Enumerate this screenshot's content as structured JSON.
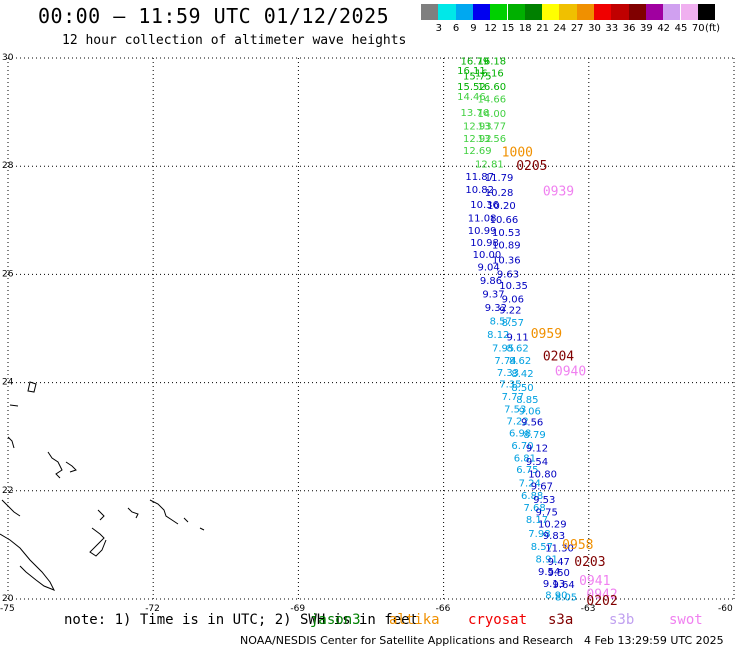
{
  "header": {
    "title": "00:00 – 11:59 UTC 01/12/2025",
    "subtitle": "12 hour collection of altimeter wave heights"
  },
  "colorbar": {
    "unit": "(ft)",
    "colors": [
      "#7f7f7f",
      "#00e8e8",
      "#00a8f0",
      "#0000f0",
      "#00d000",
      "#00b000",
      "#008000",
      "#ffff00",
      "#f0c000",
      "#f09000",
      "#f00000",
      "#c00000",
      "#800000",
      "#a000a0",
      "#d0a0f0",
      "#f0b0f0",
      "#000000"
    ],
    "labels": [
      "3",
      "6",
      "9",
      "12",
      "15",
      "18",
      "21",
      "24",
      "27",
      "30",
      "33",
      "36",
      "39",
      "42",
      "45",
      "70"
    ]
  },
  "map": {
    "lon_range": [
      -75,
      -60
    ],
    "lat_range": [
      20,
      30
    ],
    "x_ticks": [
      "-75",
      "-72",
      "-69",
      "-66",
      "-63",
      "-60"
    ],
    "y_ticks": [
      "30",
      "28",
      "26",
      "24",
      "22",
      "20"
    ]
  },
  "track_labels": [
    {
      "lon": -65.65,
      "lat": 29.95,
      "text": "16.79",
      "color": "#00b000"
    },
    {
      "lon": -65.3,
      "lat": 29.95,
      "text": "16.18",
      "color": "#00b000"
    },
    {
      "lon": -65.72,
      "lat": 29.78,
      "text": "16.11",
      "color": "#00b000"
    },
    {
      "lon": -65.35,
      "lat": 29.73,
      "text": "16.16",
      "color": "#00b000"
    },
    {
      "lon": -65.6,
      "lat": 29.68,
      "text": "15.75",
      "color": "#00b000"
    },
    {
      "lon": -65.72,
      "lat": 29.48,
      "text": "15.52",
      "color": "#00b000"
    },
    {
      "lon": -65.3,
      "lat": 29.48,
      "text": "16.60",
      "color": "#00b000"
    },
    {
      "lon": -65.72,
      "lat": 29.3,
      "text": "14.46",
      "color": "#40d040"
    },
    {
      "lon": -65.3,
      "lat": 29.25,
      "text": "14.66",
      "color": "#40d040"
    },
    {
      "lon": -65.65,
      "lat": 29.0,
      "text": "13.76",
      "color": "#40d040"
    },
    {
      "lon": -65.3,
      "lat": 28.98,
      "text": "14.00",
      "color": "#40d040"
    },
    {
      "lon": -65.6,
      "lat": 28.75,
      "text": "12.93",
      "color": "#40d040"
    },
    {
      "lon": -65.3,
      "lat": 28.75,
      "text": "13.77",
      "color": "#40d040"
    },
    {
      "lon": -65.6,
      "lat": 28.52,
      "text": "12.92",
      "color": "#40d040"
    },
    {
      "lon": -65.3,
      "lat": 28.52,
      "text": "13.56",
      "color": "#40d040"
    },
    {
      "lon": -65.6,
      "lat": 28.3,
      "text": "12.69",
      "color": "#40d040"
    },
    {
      "lon": -65.35,
      "lat": 28.05,
      "text": "12.81",
      "color": "#40d040"
    },
    {
      "lon": -65.55,
      "lat": 27.82,
      "text": "11.87",
      "color": "#0000c0"
    },
    {
      "lon": -65.15,
      "lat": 27.8,
      "text": "11.79",
      "color": "#0000c0"
    },
    {
      "lon": -65.55,
      "lat": 27.58,
      "text": "10.82",
      "color": "#0000c0"
    },
    {
      "lon": -65.15,
      "lat": 27.52,
      "text": "10.28",
      "color": "#0000c0"
    },
    {
      "lon": -65.45,
      "lat": 27.3,
      "text": "10.36",
      "color": "#0000c0"
    },
    {
      "lon": -65.1,
      "lat": 27.28,
      "text": "10.20",
      "color": "#0000c0"
    },
    {
      "lon": -65.5,
      "lat": 27.05,
      "text": "11.08",
      "color": "#0000c0"
    },
    {
      "lon": -65.05,
      "lat": 27.02,
      "text": "10.66",
      "color": "#0000c0"
    },
    {
      "lon": -65.5,
      "lat": 26.82,
      "text": "10.99",
      "color": "#0000c0"
    },
    {
      "lon": -65.0,
      "lat": 26.78,
      "text": "10.53",
      "color": "#0000c0"
    },
    {
      "lon": -65.45,
      "lat": 26.6,
      "text": "10.98",
      "color": "#0000c0"
    },
    {
      "lon": -65.0,
      "lat": 26.55,
      "text": "10.89",
      "color": "#0000c0"
    },
    {
      "lon": -65.4,
      "lat": 26.38,
      "text": "10.00",
      "color": "#0000c0"
    },
    {
      "lon": -65.0,
      "lat": 26.28,
      "text": "10.36",
      "color": "#0000c0"
    },
    {
      "lon": -65.3,
      "lat": 26.15,
      "text": "9.04",
      "color": "#0000c0"
    },
    {
      "lon": -64.9,
      "lat": 26.02,
      "text": "9.63",
      "color": "#0000c0"
    },
    {
      "lon": -65.25,
      "lat": 25.9,
      "text": "9.86",
      "color": "#0000c0"
    },
    {
      "lon": -64.85,
      "lat": 25.8,
      "text": "10.35",
      "color": "#0000c0"
    },
    {
      "lon": -65.2,
      "lat": 25.65,
      "text": "9.37",
      "color": "#0000c0"
    },
    {
      "lon": -64.8,
      "lat": 25.55,
      "text": "9.06",
      "color": "#0000c0"
    },
    {
      "lon": -65.15,
      "lat": 25.4,
      "text": "9.32",
      "color": "#0000c0"
    },
    {
      "lon": -64.85,
      "lat": 25.35,
      "text": "9.22",
      "color": "#0000c0"
    },
    {
      "lon": -65.05,
      "lat": 25.15,
      "text": "8.57",
      "color": "#00a0e0"
    },
    {
      "lon": -64.8,
      "lat": 25.12,
      "text": "8.57",
      "color": "#00a0e0"
    },
    {
      "lon": -65.1,
      "lat": 24.9,
      "text": "8.12",
      "color": "#00a0e0"
    },
    {
      "lon": -64.7,
      "lat": 24.85,
      "text": "9.11",
      "color": "#0000c0"
    },
    {
      "lon": -65.0,
      "lat": 24.65,
      "text": "7.95",
      "color": "#00a0e0"
    },
    {
      "lon": -64.7,
      "lat": 24.65,
      "text": "8.62",
      "color": "#00a0e0"
    },
    {
      "lon": -64.95,
      "lat": 24.42,
      "text": "7.74",
      "color": "#00a0e0"
    },
    {
      "lon": -64.65,
      "lat": 24.42,
      "text": "8.62",
      "color": "#00a0e0"
    },
    {
      "lon": -64.9,
      "lat": 24.2,
      "text": "7.33",
      "color": "#00a0e0"
    },
    {
      "lon": -64.6,
      "lat": 24.18,
      "text": "8.42",
      "color": "#00a0e0"
    },
    {
      "lon": -64.85,
      "lat": 23.98,
      "text": "7.35",
      "color": "#00a0e0"
    },
    {
      "lon": -64.6,
      "lat": 23.92,
      "text": "8.50",
      "color": "#00a0e0"
    },
    {
      "lon": -64.8,
      "lat": 23.75,
      "text": "7.77",
      "color": "#00a0e0"
    },
    {
      "lon": -64.5,
      "lat": 23.7,
      "text": "8.85",
      "color": "#00a0e0"
    },
    {
      "lon": -64.75,
      "lat": 23.52,
      "text": "7.53",
      "color": "#00a0e0"
    },
    {
      "lon": -64.45,
      "lat": 23.48,
      "text": "9.06",
      "color": "#00a0e0"
    },
    {
      "lon": -64.7,
      "lat": 23.3,
      "text": "7.22",
      "color": "#00a0e0"
    },
    {
      "lon": -64.4,
      "lat": 23.28,
      "text": "9.56",
      "color": "#0000c0"
    },
    {
      "lon": -64.65,
      "lat": 23.08,
      "text": "6.98",
      "color": "#00a0e0"
    },
    {
      "lon": -64.35,
      "lat": 23.05,
      "text": "8.79",
      "color": "#00a0e0"
    },
    {
      "lon": -64.6,
      "lat": 22.85,
      "text": "6.70",
      "color": "#00a0e0"
    },
    {
      "lon": -64.3,
      "lat": 22.8,
      "text": "9.12",
      "color": "#0000c0"
    },
    {
      "lon": -64.55,
      "lat": 22.62,
      "text": "6.81",
      "color": "#00a0e0"
    },
    {
      "lon": -64.3,
      "lat": 22.55,
      "text": "9.54",
      "color": "#0000c0"
    },
    {
      "lon": -64.5,
      "lat": 22.4,
      "text": "6.75",
      "color": "#00a0e0"
    },
    {
      "lon": -64.25,
      "lat": 22.32,
      "text": "10.80",
      "color": "#0000c0"
    },
    {
      "lon": -64.45,
      "lat": 22.15,
      "text": "7.24",
      "color": "#00a0e0"
    },
    {
      "lon": -64.2,
      "lat": 22.1,
      "text": "9.67",
      "color": "#0000c0"
    },
    {
      "lon": -64.4,
      "lat": 21.92,
      "text": "6.88",
      "color": "#00a0e0"
    },
    {
      "lon": -64.15,
      "lat": 21.85,
      "text": "9.53",
      "color": "#0000c0"
    },
    {
      "lon": -64.35,
      "lat": 21.7,
      "text": "7.68",
      "color": "#00a0e0"
    },
    {
      "lon": -64.1,
      "lat": 21.62,
      "text": "9.75",
      "color": "#0000c0"
    },
    {
      "lon": -64.3,
      "lat": 21.48,
      "text": "8.17",
      "color": "#00a0e0"
    },
    {
      "lon": -64.05,
      "lat": 21.4,
      "text": "10.29",
      "color": "#0000c0"
    },
    {
      "lon": -64.25,
      "lat": 21.22,
      "text": "7.98",
      "color": "#00a0e0"
    },
    {
      "lon": -63.95,
      "lat": 21.18,
      "text": "9.83",
      "color": "#0000c0"
    },
    {
      "lon": -64.2,
      "lat": 20.98,
      "text": "8.57",
      "color": "#00a0e0"
    },
    {
      "lon": -63.9,
      "lat": 20.95,
      "text": "11.30",
      "color": "#0000c0"
    },
    {
      "lon": -64.1,
      "lat": 20.75,
      "text": "8.91",
      "color": "#00a0e0"
    },
    {
      "lon": -63.85,
      "lat": 20.7,
      "text": "9.47",
      "color": "#0000c0"
    },
    {
      "lon": -64.05,
      "lat": 20.52,
      "text": "9.54",
      "color": "#0000c0"
    },
    {
      "lon": -63.85,
      "lat": 20.5,
      "text": "9.50",
      "color": "#0000c0"
    },
    {
      "lon": -63.95,
      "lat": 20.3,
      "text": "9.13",
      "color": "#0000c0"
    },
    {
      "lon": -63.75,
      "lat": 20.28,
      "text": "9.64",
      "color": "#0000c0"
    },
    {
      "lon": -63.9,
      "lat": 20.08,
      "text": "8.90",
      "color": "#00a0e0"
    },
    {
      "lon": -63.7,
      "lat": 20.05,
      "text": "8.05",
      "color": "#00a0e0"
    }
  ],
  "pass_labels": [
    {
      "lon": -64.8,
      "lat": 28.27,
      "text": "1000",
      "color": "#f09000"
    },
    {
      "lon": -64.5,
      "lat": 28.02,
      "text": "0205",
      "color": "#800000"
    },
    {
      "lon": -63.95,
      "lat": 27.55,
      "text": "0939",
      "color": "#f080f0"
    },
    {
      "lon": -64.2,
      "lat": 24.92,
      "text": "0959",
      "color": "#f09000"
    },
    {
      "lon": -63.95,
      "lat": 24.5,
      "text": "0204",
      "color": "#800000"
    },
    {
      "lon": -63.7,
      "lat": 24.22,
      "text": "0940",
      "color": "#f080f0"
    },
    {
      "lon": -63.55,
      "lat": 21.02,
      "text": "0958",
      "color": "#f09000"
    },
    {
      "lon": -63.3,
      "lat": 20.7,
      "text": "0203",
      "color": "#800000"
    },
    {
      "lon": -63.2,
      "lat": 20.35,
      "text": "0941",
      "color": "#f080f0"
    },
    {
      "lon": -63.05,
      "lat": 20.1,
      "text": "0942",
      "color": "#f080f0"
    },
    {
      "lon": -63.05,
      "lat": 19.98,
      "text": "0202",
      "color": "#800000"
    }
  ],
  "footer": {
    "note": "note: 1) Time is in UTC; 2) SWH is in feet",
    "legend": [
      {
        "label": "jason3",
        "color": "#008000"
      },
      {
        "label": "altika",
        "color": "#f09000"
      },
      {
        "label": "cryosat",
        "color": "#f00000"
      },
      {
        "label": "s3a",
        "color": "#800000"
      },
      {
        "label": "s3b",
        "color": "#c0a0f0"
      },
      {
        "label": "swot",
        "color": "#f080f0"
      }
    ],
    "credit": "NOAA/NESDIS Center for Satellite Applications and Research",
    "timestamp": "4 Feb 13:29:59 UTC 2025"
  }
}
